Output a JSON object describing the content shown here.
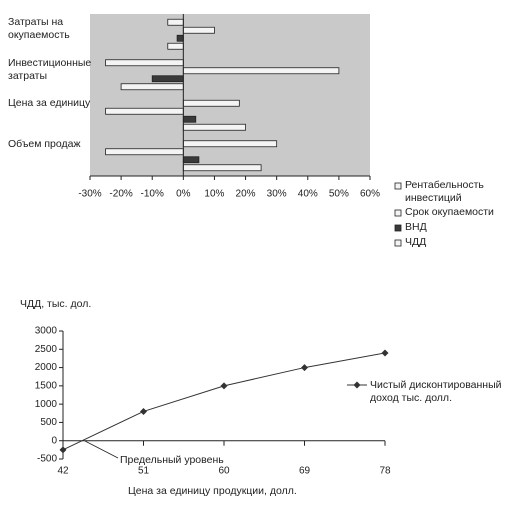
{
  "chart_data": [
    {
      "type": "barh",
      "categories": [
        "Затраты на окупаемость",
        "Инвестиционные затраты",
        "Цена за единицу",
        "Объем продаж"
      ],
      "series": [
        {
          "name": "Рентабельность инвестиций",
          "color": "#f4f4f4",
          "values": [
            -5,
            -25,
            18,
            30
          ]
        },
        {
          "name": "Срок окупаемости",
          "color": "#f4f4f4",
          "values": [
            10,
            50,
            -25,
            -25
          ]
        },
        {
          "name": "ВНД",
          "color": "#3a3a3a",
          "values": [
            -2,
            -10,
            4,
            5
          ]
        },
        {
          "name": "ЧДД",
          "color": "#f4f4f4",
          "values": [
            -5,
            -20,
            20,
            25
          ]
        }
      ],
      "xlim": [
        -30,
        60
      ],
      "xticks": [
        {
          "value": -30,
          "label": "-30%"
        },
        {
          "value": -20,
          "label": "-20%"
        },
        {
          "value": -10,
          "label": "-10%"
        },
        {
          "value": 0,
          "label": "0%"
        },
        {
          "value": 10,
          "label": "10%"
        },
        {
          "value": 20,
          "label": "20%"
        },
        {
          "value": 30,
          "label": "30%"
        },
        {
          "value": 40,
          "label": "40%"
        },
        {
          "value": 50,
          "label": "50%"
        },
        {
          "value": 60,
          "label": "60%"
        }
      ],
      "background": "#c9c9c9"
    },
    {
      "type": "line",
      "y_label": "ЧДД, тыс. дол.",
      "x_label": "Цена за единицу продукции, долл.",
      "annotation": "Предельный уровень",
      "x": [
        42,
        51,
        60,
        69,
        78
      ],
      "series": [
        {
          "name": "Чистый дисконтированный доход тыс. долл.",
          "color": "#333333",
          "values": [
            -250,
            800,
            1500,
            2000,
            2400
          ]
        }
      ],
      "xlim": [
        42,
        78
      ],
      "xticks": [
        42,
        51,
        60,
        69,
        78
      ],
      "ylim": [
        -500,
        3000
      ],
      "yticks": [
        -500,
        0,
        500,
        1000,
        1500,
        2000,
        2500,
        3000
      ]
    }
  ]
}
